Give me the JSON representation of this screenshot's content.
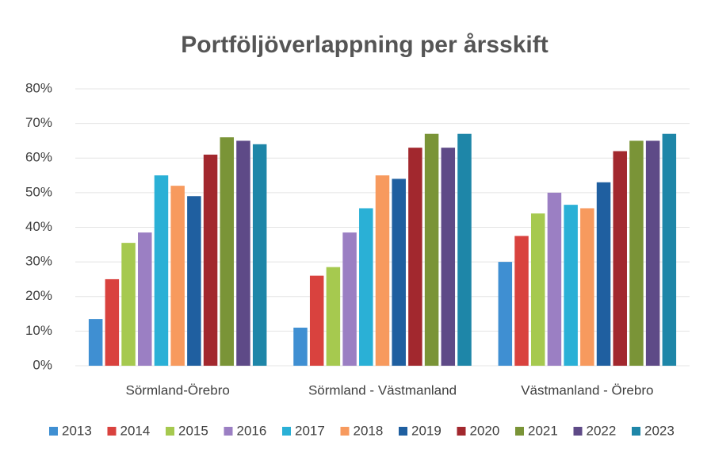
{
  "chart_data": {
    "type": "bar",
    "title": "Portföljöverlappning per årsskift",
    "categories": [
      "Sörmland-Örebro",
      "Sörmland - Västmanland",
      "Västmanland - Örebro"
    ],
    "series": [
      {
        "name": "2013",
        "color": "#3f8fd2",
        "values": [
          13.5,
          11,
          30
        ]
      },
      {
        "name": "2014",
        "color": "#d9423e",
        "values": [
          25,
          26,
          37.5
        ]
      },
      {
        "name": "2015",
        "color": "#a6c94f",
        "values": [
          35.5,
          28.5,
          44
        ]
      },
      {
        "name": "2016",
        "color": "#9b7fc3",
        "values": [
          38.5,
          38.5,
          50
        ]
      },
      {
        "name": "2017",
        "color": "#2ab0d6",
        "values": [
          55,
          45.5,
          46.5
        ]
      },
      {
        "name": "2018",
        "color": "#f79a5e",
        "values": [
          52,
          55,
          45.5
        ]
      },
      {
        "name": "2019",
        "color": "#1f5fa0",
        "values": [
          49,
          54,
          53
        ]
      },
      {
        "name": "2020",
        "color": "#a2282e",
        "values": [
          61,
          63,
          62
        ]
      },
      {
        "name": "2021",
        "color": "#7a9437",
        "values": [
          66,
          67,
          65
        ]
      },
      {
        "name": "2022",
        "color": "#5e4a87",
        "values": [
          65,
          63,
          65
        ]
      },
      {
        "name": "2023",
        "color": "#1e86a8",
        "values": [
          64,
          67,
          67
        ]
      }
    ],
    "ylim": [
      0,
      80
    ],
    "yticks": [
      {
        "value": 0,
        "label": "0%"
      },
      {
        "value": 10,
        "label": "10%"
      },
      {
        "value": 20,
        "label": "20%"
      },
      {
        "value": 30,
        "label": "30%"
      },
      {
        "value": 40,
        "label": "40%"
      },
      {
        "value": 50,
        "label": "50%"
      },
      {
        "value": 60,
        "label": "60%"
      },
      {
        "value": 70,
        "label": "70%"
      },
      {
        "value": 80,
        "label": "80%"
      }
    ],
    "grid": true,
    "legend": "bottom"
  }
}
